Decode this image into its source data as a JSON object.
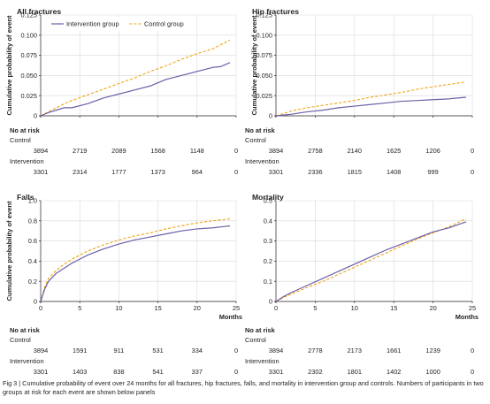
{
  "caption": "Fig 3 | Cumulative probability of event over 24 months for all fractures, hip fractures, falls, and mortality in intervention group and controls. Numbers of participants in two groups at risk for each event are shown below panels",
  "risk_table": {
    "header": "No at risk",
    "control_label": "Control",
    "intervention_label": "Intervention"
  },
  "colors": {
    "intervention": "#6b5fa8",
    "control": "#f0a513"
  },
  "chart_data": [
    {
      "type": "line",
      "title": "All fractures",
      "ylabel": "Cumulative probability of event",
      "xlabel": "",
      "xlim": [
        0,
        25
      ],
      "ylim": [
        0,
        0.125
      ],
      "xticks": [
        0,
        5,
        10,
        15,
        20,
        25
      ],
      "xtick_labels": [],
      "yticks": [
        0,
        0.025,
        0.05,
        0.075,
        0.1,
        0.125
      ],
      "ytick_labels": [
        "0",
        "0.025",
        "0.050",
        "0.075",
        "0.100",
        "0.125"
      ],
      "grid": true,
      "legend": {
        "placement": "top",
        "entries": [
          "Intervention group",
          "Control group"
        ]
      },
      "series": [
        {
          "name": "Intervention group",
          "style": "solid",
          "x": [
            0,
            1,
            2,
            3,
            4,
            6,
            8,
            10,
            12,
            14,
            16,
            18,
            20,
            22,
            23,
            24.2
          ],
          "y": [
            0,
            0.004,
            0.007,
            0.01,
            0.01,
            0.015,
            0.022,
            0.027,
            0.032,
            0.037,
            0.045,
            0.05,
            0.055,
            0.06,
            0.061,
            0.066
          ]
        },
        {
          "name": "Control group",
          "style": "dashed",
          "x": [
            0,
            1,
            2,
            3,
            4,
            6,
            8,
            10,
            12,
            14,
            16,
            18,
            20,
            22,
            23,
            24.2
          ],
          "y": [
            0,
            0.005,
            0.01,
            0.015,
            0.019,
            0.026,
            0.033,
            0.04,
            0.047,
            0.055,
            0.062,
            0.07,
            0.077,
            0.083,
            0.088,
            0.094
          ]
        }
      ],
      "risk": {
        "x": [
          0,
          5,
          10,
          15,
          20,
          25
        ],
        "control": [
          "3894",
          "2719",
          "2089",
          "1568",
          "1148",
          "0"
        ],
        "intervention": [
          "3301",
          "2314",
          "1777",
          "1373",
          "964",
          "0"
        ]
      }
    },
    {
      "type": "line",
      "title": "Hip fractures",
      "ylabel": "Cumulative probability of event",
      "xlabel": "",
      "xlim": [
        0,
        25
      ],
      "ylim": [
        0,
        0.125
      ],
      "xticks": [
        0,
        5,
        10,
        15,
        20,
        25
      ],
      "xtick_labels": [],
      "yticks": [
        0,
        0.025,
        0.05,
        0.075,
        0.1,
        0.125
      ],
      "ytick_labels": [
        "0",
        "0.025",
        "0.050",
        "0.075",
        "0.100",
        "0.125"
      ],
      "grid": true,
      "series": [
        {
          "name": "Intervention group",
          "style": "solid",
          "x": [
            0,
            2,
            4,
            6,
            8,
            10,
            12,
            14,
            16,
            18,
            20,
            22,
            24.2
          ],
          "y": [
            0,
            0.002,
            0.005,
            0.007,
            0.01,
            0.012,
            0.014,
            0.016,
            0.018,
            0.019,
            0.02,
            0.021,
            0.023
          ]
        },
        {
          "name": "Control group",
          "style": "dashed",
          "x": [
            0,
            2,
            4,
            6,
            8,
            10,
            12,
            14,
            16,
            18,
            20,
            22,
            24.2
          ],
          "y": [
            0,
            0.006,
            0.01,
            0.013,
            0.016,
            0.019,
            0.023,
            0.026,
            0.029,
            0.033,
            0.036,
            0.039,
            0.042
          ]
        }
      ],
      "risk": {
        "x": [
          0,
          5,
          10,
          15,
          20,
          25
        ],
        "control": [
          "3894",
          "2758",
          "2140",
          "1625",
          "1206",
          "0"
        ],
        "intervention": [
          "3301",
          "2336",
          "1815",
          "1408",
          "999",
          "0"
        ]
      }
    },
    {
      "type": "line",
      "title": "Falls",
      "ylabel": "Cumulative probability of event",
      "xlabel": "Months",
      "xlim": [
        0,
        25
      ],
      "ylim": [
        0,
        1.0
      ],
      "xticks": [
        0,
        5,
        10,
        15,
        20,
        25
      ],
      "xtick_labels": [
        "0",
        "5",
        "10",
        "15",
        "20",
        "25"
      ],
      "yticks": [
        0,
        0.2,
        0.4,
        0.6,
        0.8,
        1.0
      ],
      "ytick_labels": [
        "0",
        "0.2",
        "0.4",
        "0.6",
        "0.8",
        "1.0"
      ],
      "grid": true,
      "series": [
        {
          "name": "Intervention group",
          "style": "solid",
          "x": [
            0,
            0.5,
            1,
            2,
            3,
            4,
            5,
            6,
            8,
            10,
            12,
            14,
            16,
            18,
            20,
            22,
            24.2
          ],
          "y": [
            0,
            0.12,
            0.2,
            0.28,
            0.33,
            0.38,
            0.42,
            0.46,
            0.52,
            0.57,
            0.61,
            0.64,
            0.67,
            0.7,
            0.72,
            0.73,
            0.75
          ]
        },
        {
          "name": "Control group",
          "style": "dashed",
          "x": [
            0,
            0.5,
            1,
            2,
            3,
            4,
            5,
            6,
            8,
            10,
            12,
            14,
            16,
            18,
            20,
            22,
            24.2
          ],
          "y": [
            0,
            0.14,
            0.23,
            0.31,
            0.37,
            0.42,
            0.46,
            0.5,
            0.56,
            0.61,
            0.65,
            0.68,
            0.72,
            0.75,
            0.78,
            0.8,
            0.82
          ]
        }
      ],
      "risk": {
        "x": [
          0,
          5,
          10,
          15,
          20,
          25
        ],
        "control": [
          "3894",
          "1591",
          "911",
          "531",
          "334",
          "0"
        ],
        "intervention": [
          "3301",
          "1403",
          "838",
          "541",
          "337",
          "0"
        ]
      }
    },
    {
      "type": "line",
      "title": "Mortality",
      "ylabel": "",
      "xlabel": "Months",
      "xlim": [
        0,
        25
      ],
      "ylim": [
        0,
        0.5
      ],
      "xticks": [
        0,
        5,
        10,
        15,
        20,
        25
      ],
      "xtick_labels": [
        "0",
        "5",
        "10",
        "15",
        "20",
        "25"
      ],
      "yticks": [
        0,
        0.1,
        0.2,
        0.3,
        0.4,
        0.5
      ],
      "ytick_labels": [
        "0",
        "0.1",
        "0.2",
        "0.3",
        "0.4",
        "0.5"
      ],
      "grid": true,
      "series": [
        {
          "name": "Intervention group",
          "style": "solid",
          "x": [
            0,
            1,
            2,
            4,
            6,
            8,
            10,
            12,
            14,
            16,
            18,
            20,
            22,
            24.2
          ],
          "y": [
            0,
            0.025,
            0.045,
            0.08,
            0.115,
            0.15,
            0.185,
            0.22,
            0.255,
            0.285,
            0.315,
            0.345,
            0.365,
            0.395
          ]
        },
        {
          "name": "Control group",
          "style": "dashed",
          "x": [
            0,
            1,
            2,
            4,
            6,
            8,
            10,
            12,
            14,
            16,
            18,
            20,
            22,
            24.2
          ],
          "y": [
            0,
            0.02,
            0.038,
            0.07,
            0.1,
            0.135,
            0.17,
            0.205,
            0.24,
            0.275,
            0.31,
            0.34,
            0.37,
            0.41
          ]
        }
      ],
      "risk": {
        "x": [
          0,
          5,
          10,
          15,
          20,
          25
        ],
        "control": [
          "3894",
          "2778",
          "2173",
          "1661",
          "1239",
          "0"
        ],
        "intervention": [
          "3301",
          "2302",
          "1801",
          "1402",
          "1000",
          "0"
        ]
      }
    }
  ]
}
